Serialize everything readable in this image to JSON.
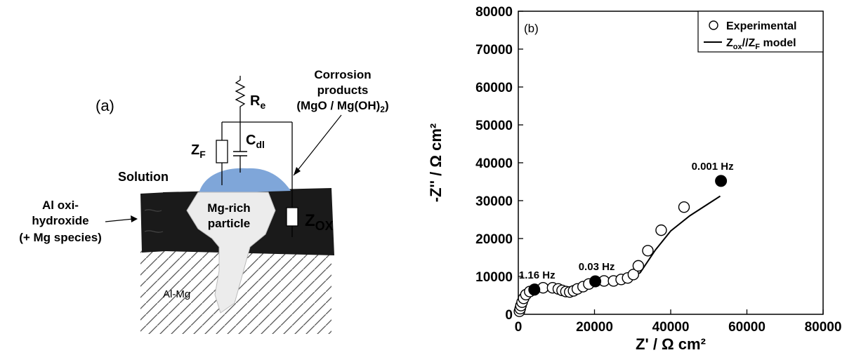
{
  "panel_a": {
    "label": "(a)",
    "circuit": {
      "resistor_label": "R",
      "resistor_sub": "e",
      "capacitor_label": "C",
      "capacitor_sub": "dl",
      "faradaic_label": "Z",
      "faradaic_sub": "F",
      "oxide_label": "Z",
      "oxide_sub": "OX"
    },
    "labels": {
      "corrosion_line1": "Corrosion",
      "corrosion_line2": "products",
      "corrosion_line3_a": "(MgO / Mg(OH)",
      "corrosion_line3_sub": "2",
      "corrosion_line3_b": ")",
      "solution": "Solution",
      "oxide_line1": "Al oxi-",
      "oxide_line2": "hydroxide",
      "oxide_line3": "(+ Mg species)",
      "particle_line1": "Mg-rich",
      "particle_line2": "particle",
      "substrate": "Al-Mg"
    },
    "colors": {
      "oxide": "#1a1a1a",
      "corrosion_products": "#7fa6d9",
      "particle": "#ececec",
      "substrate_hatch": "#555555"
    }
  },
  "chart_data": {
    "type": "scatter",
    "panel_label": "(b)",
    "xlabel": "Z' / Ω cm²",
    "ylabel": "-Z'' / Ω cm²",
    "xlim": [
      0,
      80000
    ],
    "ylim": [
      0,
      80000
    ],
    "x_ticks": [
      "0",
      "20000",
      "40000",
      "60000",
      "80000"
    ],
    "y_ticks": [
      "0",
      "10000",
      "20000",
      "30000",
      "40000",
      "50000",
      "60000",
      "70000",
      "80000"
    ],
    "legend_position": "top-right",
    "legend": {
      "experimental": "Experimental",
      "model_a": "Z",
      "model_a_sub": "ox",
      "model_b": "//Z",
      "model_b_sub": "F",
      "model_c": " model"
    },
    "series": [
      {
        "name": "Experimental",
        "marker": "open-circle",
        "points": [
          [
            300,
            800
          ],
          [
            500,
            1500
          ],
          [
            700,
            2300
          ],
          [
            1000,
            3200
          ],
          [
            1400,
            4200
          ],
          [
            2000,
            5200
          ],
          [
            3000,
            6000
          ],
          [
            4300,
            6600
          ],
          [
            6500,
            7000
          ],
          [
            9000,
            7000
          ],
          [
            10500,
            6700
          ],
          [
            11500,
            6300
          ],
          [
            12500,
            6000
          ],
          [
            13500,
            5900
          ],
          [
            14500,
            6200
          ],
          [
            15500,
            6700
          ],
          [
            17000,
            7300
          ],
          [
            18500,
            8000
          ],
          [
            20300,
            8700
          ],
          [
            22500,
            8800
          ],
          [
            25000,
            8800
          ],
          [
            27000,
            9200
          ],
          [
            28700,
            9600
          ],
          [
            30200,
            10500
          ],
          [
            31500,
            12800
          ],
          [
            34000,
            16800
          ],
          [
            37500,
            22200
          ],
          [
            43500,
            28300
          ]
        ]
      },
      {
        "name": "Zox//ZF model",
        "marker": "line",
        "points": [
          [
            0,
            0
          ],
          [
            800,
            2500
          ],
          [
            2000,
            4800
          ],
          [
            4000,
            6200
          ],
          [
            7000,
            6800
          ],
          [
            10000,
            6600
          ],
          [
            13000,
            6000
          ],
          [
            16000,
            6500
          ],
          [
            20000,
            7800
          ],
          [
            25000,
            8500
          ],
          [
            29000,
            9200
          ],
          [
            32000,
            11000
          ],
          [
            36000,
            17000
          ],
          [
            40000,
            22000
          ],
          [
            45000,
            26000
          ],
          [
            53000,
            31200
          ]
        ]
      }
    ],
    "highlighted_points": [
      {
        "x": 4200,
        "y": 6500,
        "label": "1.16 Hz"
      },
      {
        "x": 20200,
        "y": 8700,
        "label": "0.03 Hz"
      },
      {
        "x": 53200,
        "y": 35200,
        "label": "0.001 Hz"
      }
    ]
  }
}
